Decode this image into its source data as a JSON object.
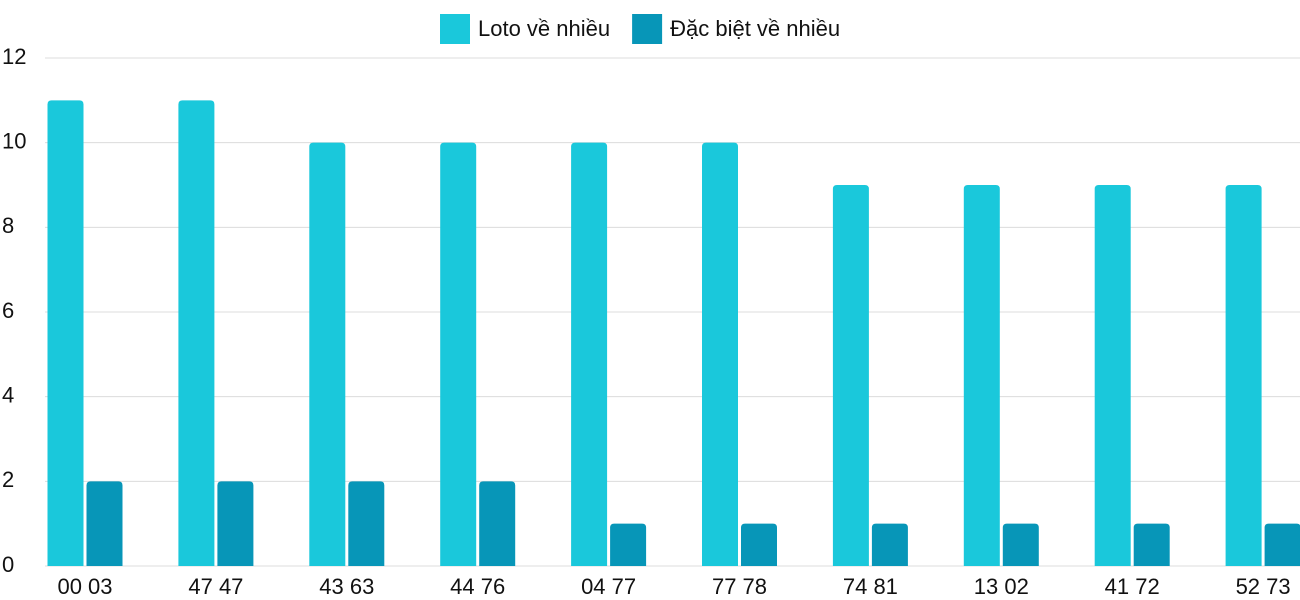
{
  "chart_data": {
    "type": "bar",
    "categories": [
      "00 03",
      "47 47",
      "43 63",
      "44 76",
      "04 77",
      "77 78",
      "74 81",
      "13 02",
      "41 72",
      "52 73"
    ],
    "series": [
      {
        "name": "Loto về nhiều",
        "color": "#1ac8db",
        "values": [
          11,
          11,
          10,
          10,
          10,
          10,
          9,
          9,
          9,
          9
        ]
      },
      {
        "name": "Đặc biệt về nhiều",
        "color": "#0796b8",
        "values": [
          2,
          2,
          2,
          2,
          1,
          1,
          1,
          1,
          1,
          1
        ]
      }
    ],
    "ylim": [
      0,
      12
    ],
    "yticks": [
      0,
      2,
      4,
      6,
      8,
      10,
      12
    ],
    "grid": true,
    "legend": "top"
  }
}
